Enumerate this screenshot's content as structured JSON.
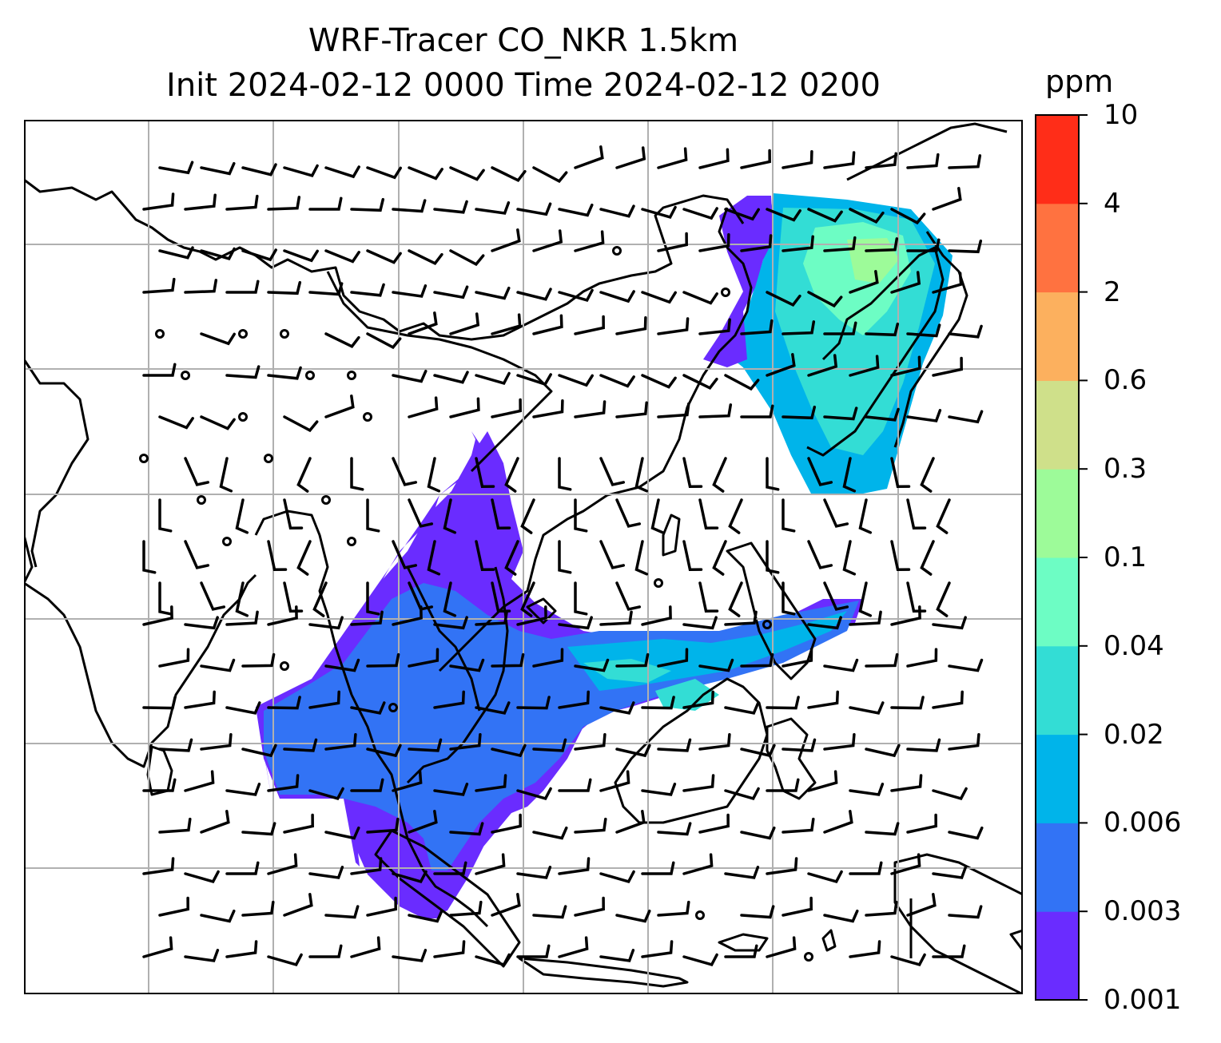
{
  "title": {
    "line1": "WRF-Tracer CO_NKR 1.5km",
    "line2": "Init 2024-02-12 0000 Time 2024-02-12 0200"
  },
  "colorbar": {
    "unit": "ppm",
    "ticks": [
      "0.001",
      "0.003",
      "0.006",
      "0.02",
      "0.04",
      "0.1",
      "0.3",
      "0.6",
      "2",
      "4",
      "10"
    ],
    "colors": [
      "#6a2cff",
      "#3273f5",
      "#00b4ea",
      "#33ddd5",
      "#6dfdc4",
      "#9dfb99",
      "#cfe08a",
      "#fcb05e",
      "#ff7240",
      "#ff2d18"
    ]
  },
  "map": {
    "type": "filled-contour with wind barbs",
    "grid": true,
    "coastline_color": "#000000",
    "grid_color": "#b0b0b0"
  }
}
